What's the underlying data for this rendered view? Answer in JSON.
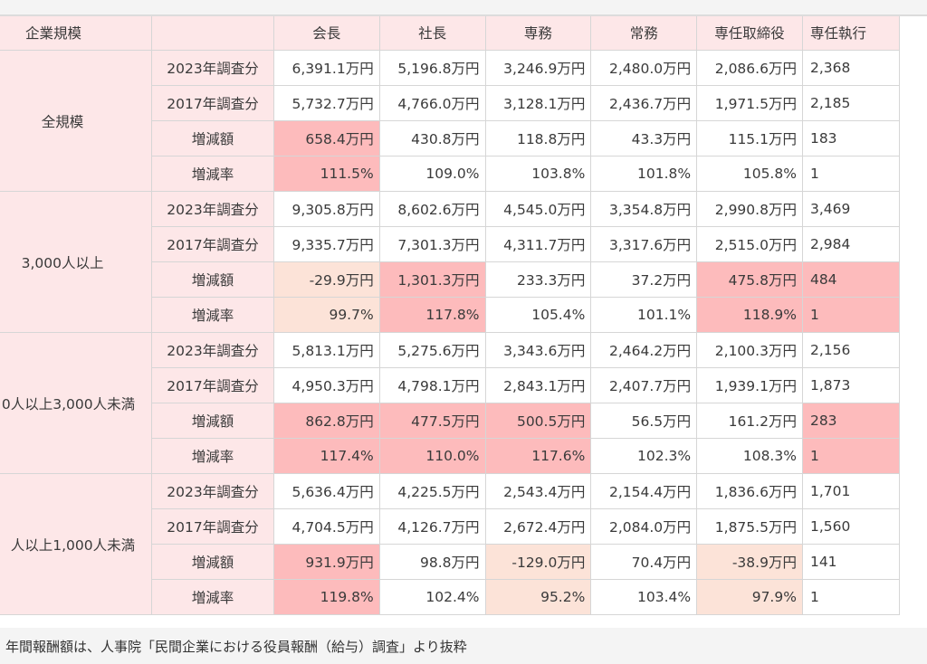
{
  "header": {
    "corner": "企業規模",
    "blank": "",
    "columns": [
      "会長",
      "社長",
      "専務",
      "常務",
      "専任取締役",
      "専任執行"
    ]
  },
  "groups": [
    {
      "label": "全規模",
      "rows": [
        {
          "label": "2023年調査分",
          "cells": [
            [
              "6,391.1万円",
              ""
            ],
            [
              "5,196.8万円",
              ""
            ],
            [
              "3,246.9万円",
              ""
            ],
            [
              "2,480.0万円",
              ""
            ],
            [
              "2,086.6万円",
              ""
            ],
            [
              "2,368",
              ""
            ]
          ]
        },
        {
          "label": "2017年調査分",
          "cells": [
            [
              "5,732.7万円",
              ""
            ],
            [
              "4,766.0万円",
              ""
            ],
            [
              "3,128.1万円",
              ""
            ],
            [
              "2,436.7万円",
              ""
            ],
            [
              "1,971.5万円",
              ""
            ],
            [
              "2,185",
              ""
            ]
          ]
        },
        {
          "label": "増減額",
          "cells": [
            [
              "658.4万円",
              "hi"
            ],
            [
              "430.8万円",
              ""
            ],
            [
              "118.8万円",
              ""
            ],
            [
              "43.3万円",
              ""
            ],
            [
              "115.1万円",
              ""
            ],
            [
              "183",
              ""
            ]
          ]
        },
        {
          "label": "増減率",
          "cells": [
            [
              "111.5%",
              "hi"
            ],
            [
              "109.0%",
              ""
            ],
            [
              "103.8%",
              ""
            ],
            [
              "101.8%",
              ""
            ],
            [
              "105.8%",
              ""
            ],
            [
              "1",
              ""
            ]
          ]
        }
      ]
    },
    {
      "label": "3,000人以上",
      "rows": [
        {
          "label": "2023年調査分",
          "cells": [
            [
              "9,305.8万円",
              ""
            ],
            [
              "8,602.6万円",
              ""
            ],
            [
              "4,545.0万円",
              ""
            ],
            [
              "3,354.8万円",
              ""
            ],
            [
              "2,990.8万円",
              ""
            ],
            [
              "3,469",
              ""
            ]
          ]
        },
        {
          "label": "2017年調査分",
          "cells": [
            [
              "9,335.7万円",
              ""
            ],
            [
              "7,301.3万円",
              ""
            ],
            [
              "4,311.7万円",
              ""
            ],
            [
              "3,317.6万円",
              ""
            ],
            [
              "2,515.0万円",
              ""
            ],
            [
              "2,984",
              ""
            ]
          ]
        },
        {
          "label": "増減額",
          "cells": [
            [
              "-29.9万円",
              "lo"
            ],
            [
              "1,301.3万円",
              "hi"
            ],
            [
              "233.3万円",
              ""
            ],
            [
              "37.2万円",
              ""
            ],
            [
              "475.8万円",
              "hi"
            ],
            [
              "484",
              "hi"
            ]
          ]
        },
        {
          "label": "増減率",
          "cells": [
            [
              "99.7%",
              "lo"
            ],
            [
              "117.8%",
              "hi"
            ],
            [
              "105.4%",
              ""
            ],
            [
              "101.1%",
              ""
            ],
            [
              "118.9%",
              "hi"
            ],
            [
              "1",
              "hi"
            ]
          ]
        }
      ]
    },
    {
      "label": "0人以上3,000人未満",
      "rows": [
        {
          "label": "2023年調査分",
          "cells": [
            [
              "5,813.1万円",
              ""
            ],
            [
              "5,275.6万円",
              ""
            ],
            [
              "3,343.6万円",
              ""
            ],
            [
              "2,464.2万円",
              ""
            ],
            [
              "2,100.3万円",
              ""
            ],
            [
              "2,156",
              ""
            ]
          ]
        },
        {
          "label": "2017年調査分",
          "cells": [
            [
              "4,950.3万円",
              ""
            ],
            [
              "4,798.1万円",
              ""
            ],
            [
              "2,843.1万円",
              ""
            ],
            [
              "2,407.7万円",
              ""
            ],
            [
              "1,939.1万円",
              ""
            ],
            [
              "1,873",
              ""
            ]
          ]
        },
        {
          "label": "増減額",
          "cells": [
            [
              "862.8万円",
              "hi"
            ],
            [
              "477.5万円",
              "hi"
            ],
            [
              "500.5万円",
              "hi"
            ],
            [
              "56.5万円",
              ""
            ],
            [
              "161.2万円",
              ""
            ],
            [
              "283",
              "hi"
            ]
          ]
        },
        {
          "label": "増減率",
          "cells": [
            [
              "117.4%",
              "hi"
            ],
            [
              "110.0%",
              "hi"
            ],
            [
              "117.6%",
              "hi"
            ],
            [
              "102.3%",
              ""
            ],
            [
              "108.3%",
              ""
            ],
            [
              "1",
              "hi"
            ]
          ]
        }
      ]
    },
    {
      "label": "人以上1,000人未満",
      "rows": [
        {
          "label": "2023年調査分",
          "cells": [
            [
              "5,636.4万円",
              ""
            ],
            [
              "4,225.5万円",
              ""
            ],
            [
              "2,543.4万円",
              ""
            ],
            [
              "2,154.4万円",
              ""
            ],
            [
              "1,836.6万円",
              ""
            ],
            [
              "1,701",
              ""
            ]
          ]
        },
        {
          "label": "2017年調査分",
          "cells": [
            [
              "4,704.5万円",
              ""
            ],
            [
              "4,126.7万円",
              ""
            ],
            [
              "2,672.4万円",
              ""
            ],
            [
              "2,084.0万円",
              ""
            ],
            [
              "1,875.5万円",
              ""
            ],
            [
              "1,560",
              ""
            ]
          ]
        },
        {
          "label": "増減額",
          "cells": [
            [
              "931.9万円",
              "hi"
            ],
            [
              "98.8万円",
              ""
            ],
            [
              "-129.0万円",
              "lo"
            ],
            [
              "70.4万円",
              ""
            ],
            [
              "-38.9万円",
              "lo"
            ],
            [
              "141",
              ""
            ]
          ]
        },
        {
          "label": "増減率",
          "cells": [
            [
              "119.8%",
              "hi"
            ],
            [
              "102.4%",
              ""
            ],
            [
              "95.2%",
              "lo"
            ],
            [
              "103.4%",
              ""
            ],
            [
              "97.9%",
              "lo"
            ],
            [
              "1",
              ""
            ]
          ]
        }
      ]
    }
  ],
  "footnote": "年間報酬額は、人事院「民間企業における役員報酬（給与）調査」より抜粋",
  "colors": {
    "header_bg": "#fde7e8",
    "highlight_up": "#fdbbbc",
    "highlight_down": "#fce3d8"
  }
}
